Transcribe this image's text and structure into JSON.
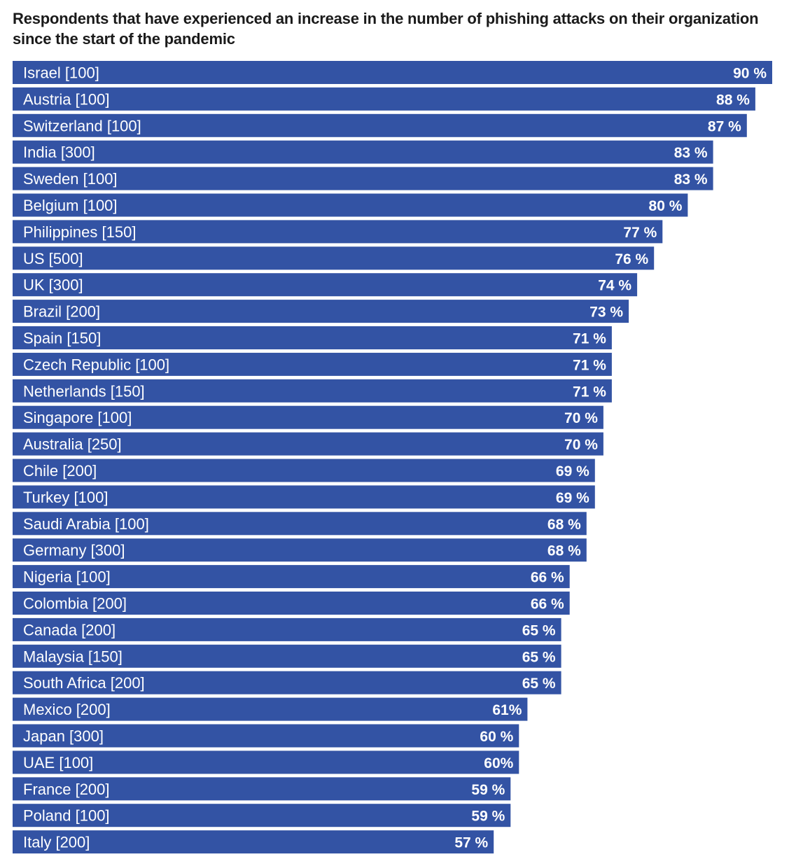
{
  "chart_data": {
    "type": "bar",
    "orientation": "horizontal",
    "title": "Respondents that have experienced an increase in the number of phishing attacks on their organization since the start of the pandemic",
    "categories": [
      "Israel [100]",
      "Austria [100]",
      "Switzerland [100]",
      "India [300]",
      "Sweden [100]",
      "Belgium [100]",
      "Philippines [150]",
      "US [500]",
      "UK [300]",
      "Brazil [200]",
      "Spain [150]",
      "Czech Republic [100]",
      "Netherlands [150]",
      "Singapore [100]",
      "Australia [250]",
      "Chile [200]",
      "Turkey [100]",
      "Saudi Arabia [100]",
      "Germany [300]",
      "Nigeria [100]",
      "Colombia [200]",
      "Canada [200]",
      "Malaysia [150]",
      "South Africa [200]",
      "Mexico [200]",
      "Japan [300]",
      "UAE [100]",
      "France [200]",
      "Poland [100]",
      "Italy [200]"
    ],
    "values": [
      90,
      88,
      87,
      83,
      83,
      80,
      77,
      76,
      74,
      73,
      71,
      71,
      71,
      70,
      70,
      69,
      69,
      68,
      68,
      66,
      66,
      65,
      65,
      65,
      61,
      60,
      60,
      59,
      59,
      57
    ],
    "value_labels": [
      "90 %",
      "88 %",
      "87 %",
      "83 %",
      "83 %",
      "80 %",
      "77 %",
      "76 %",
      "74 %",
      "73 %",
      "71 %",
      "71 %",
      "71 %",
      "70 %",
      "70 %",
      "69 %",
      "69 %",
      "68 %",
      "68 %",
      "66 %",
      "66 %",
      "65 %",
      "65 %",
      "65 %",
      "61%",
      "60 %",
      "60%",
      "59 %",
      "59 %",
      "57 %"
    ],
    "xlim": [
      0,
      90
    ],
    "grid": false,
    "legend": "none",
    "bar_color": "#3353A4",
    "label_color": "#ffffff"
  }
}
